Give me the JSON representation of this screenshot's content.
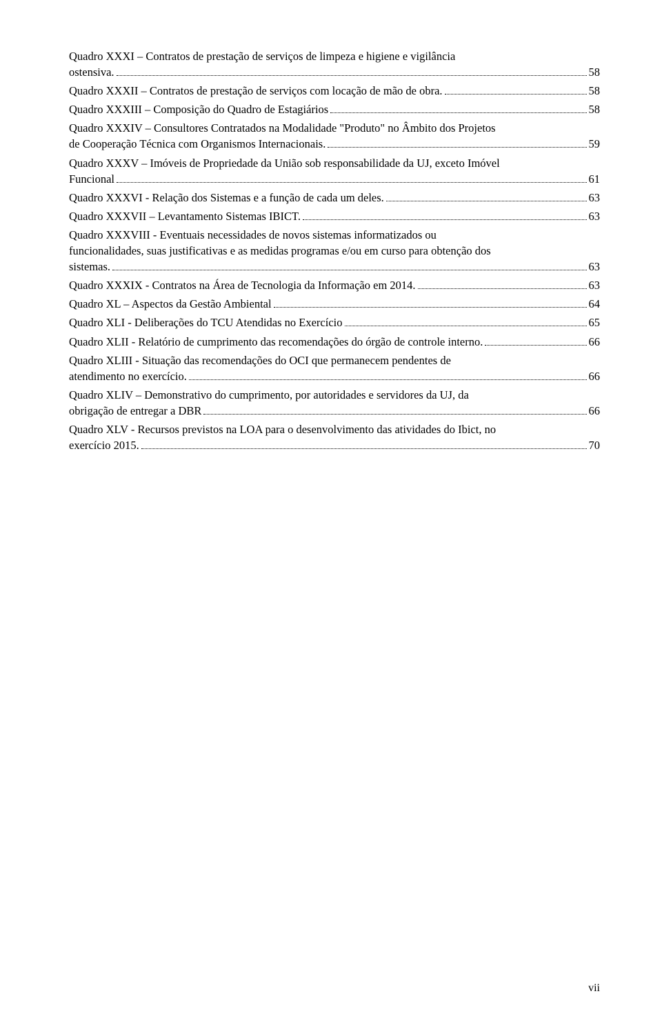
{
  "entries": [
    {
      "titleLines": [
        "Quadro XXXI – Contratos de prestação de serviços de limpeza e higiene e vigilância",
        "ostensiva."
      ],
      "page": "58"
    },
    {
      "titleLines": [
        "Quadro XXXII – Contratos de prestação de serviços com locação de mão de obra."
      ],
      "page": "58"
    },
    {
      "titleLines": [
        "Quadro XXXIII – Composição do Quadro de Estagiários"
      ],
      "page": "58"
    },
    {
      "titleLines": [
        "Quadro XXXIV – Consultores Contratados na Modalidade \"Produto\" no Âmbito dos Projetos",
        "de Cooperação Técnica com Organismos Internacionais. "
      ],
      "page": "59"
    },
    {
      "titleLines": [
        "Quadro XXXV – Imóveis de Propriedade da União sob responsabilidade da UJ, exceto Imóvel",
        "Funcional"
      ],
      "page": "61"
    },
    {
      "titleLines": [
        "Quadro XXXVI - Relação dos Sistemas e a função de cada um deles. "
      ],
      "page": "63"
    },
    {
      "titleLines": [
        "Quadro XXXVII – Levantamento Sistemas IBICT. "
      ],
      "page": "63"
    },
    {
      "titleLines": [
        "Quadro XXXVIII - Eventuais necessidades de novos sistemas informatizados ou",
        "funcionalidades, suas justificativas e as medidas programas e/ou em curso para obtenção dos",
        "sistemas. "
      ],
      "page": "63"
    },
    {
      "titleLines": [
        "Quadro XXXIX - Contratos na Área de Tecnologia da Informação em 2014."
      ],
      "page": "63"
    },
    {
      "titleLines": [
        "Quadro XL – Aspectos da Gestão Ambiental"
      ],
      "page": "64"
    },
    {
      "titleLines": [
        "Quadro XLI - Deliberações do TCU Atendidas no Exercício"
      ],
      "page": "65"
    },
    {
      "titleLines": [
        "Quadro XLII - Relatório de cumprimento das recomendações do órgão de controle interno. "
      ],
      "page": "66"
    },
    {
      "titleLines": [
        "Quadro XLIII - Situação das recomendações do OCI que permanecem pendentes de",
        "atendimento no exercício. "
      ],
      "page": "66"
    },
    {
      "titleLines": [
        "Quadro XLIV – Demonstrativo do cumprimento, por autoridades e servidores da UJ, da",
        "obrigação de entregar a DBR"
      ],
      "page": "66"
    },
    {
      "titleLines": [
        "Quadro XLV - Recursos previstos na LOA para o desenvolvimento das atividades do Ibict, no",
        "exercício 2015. "
      ],
      "page": "70"
    }
  ],
  "pageNumber": "vii",
  "colors": {
    "background": "#ffffff",
    "text": "#000000"
  },
  "typography": {
    "fontFamily": "Times New Roman",
    "fontSize": 16.5
  }
}
